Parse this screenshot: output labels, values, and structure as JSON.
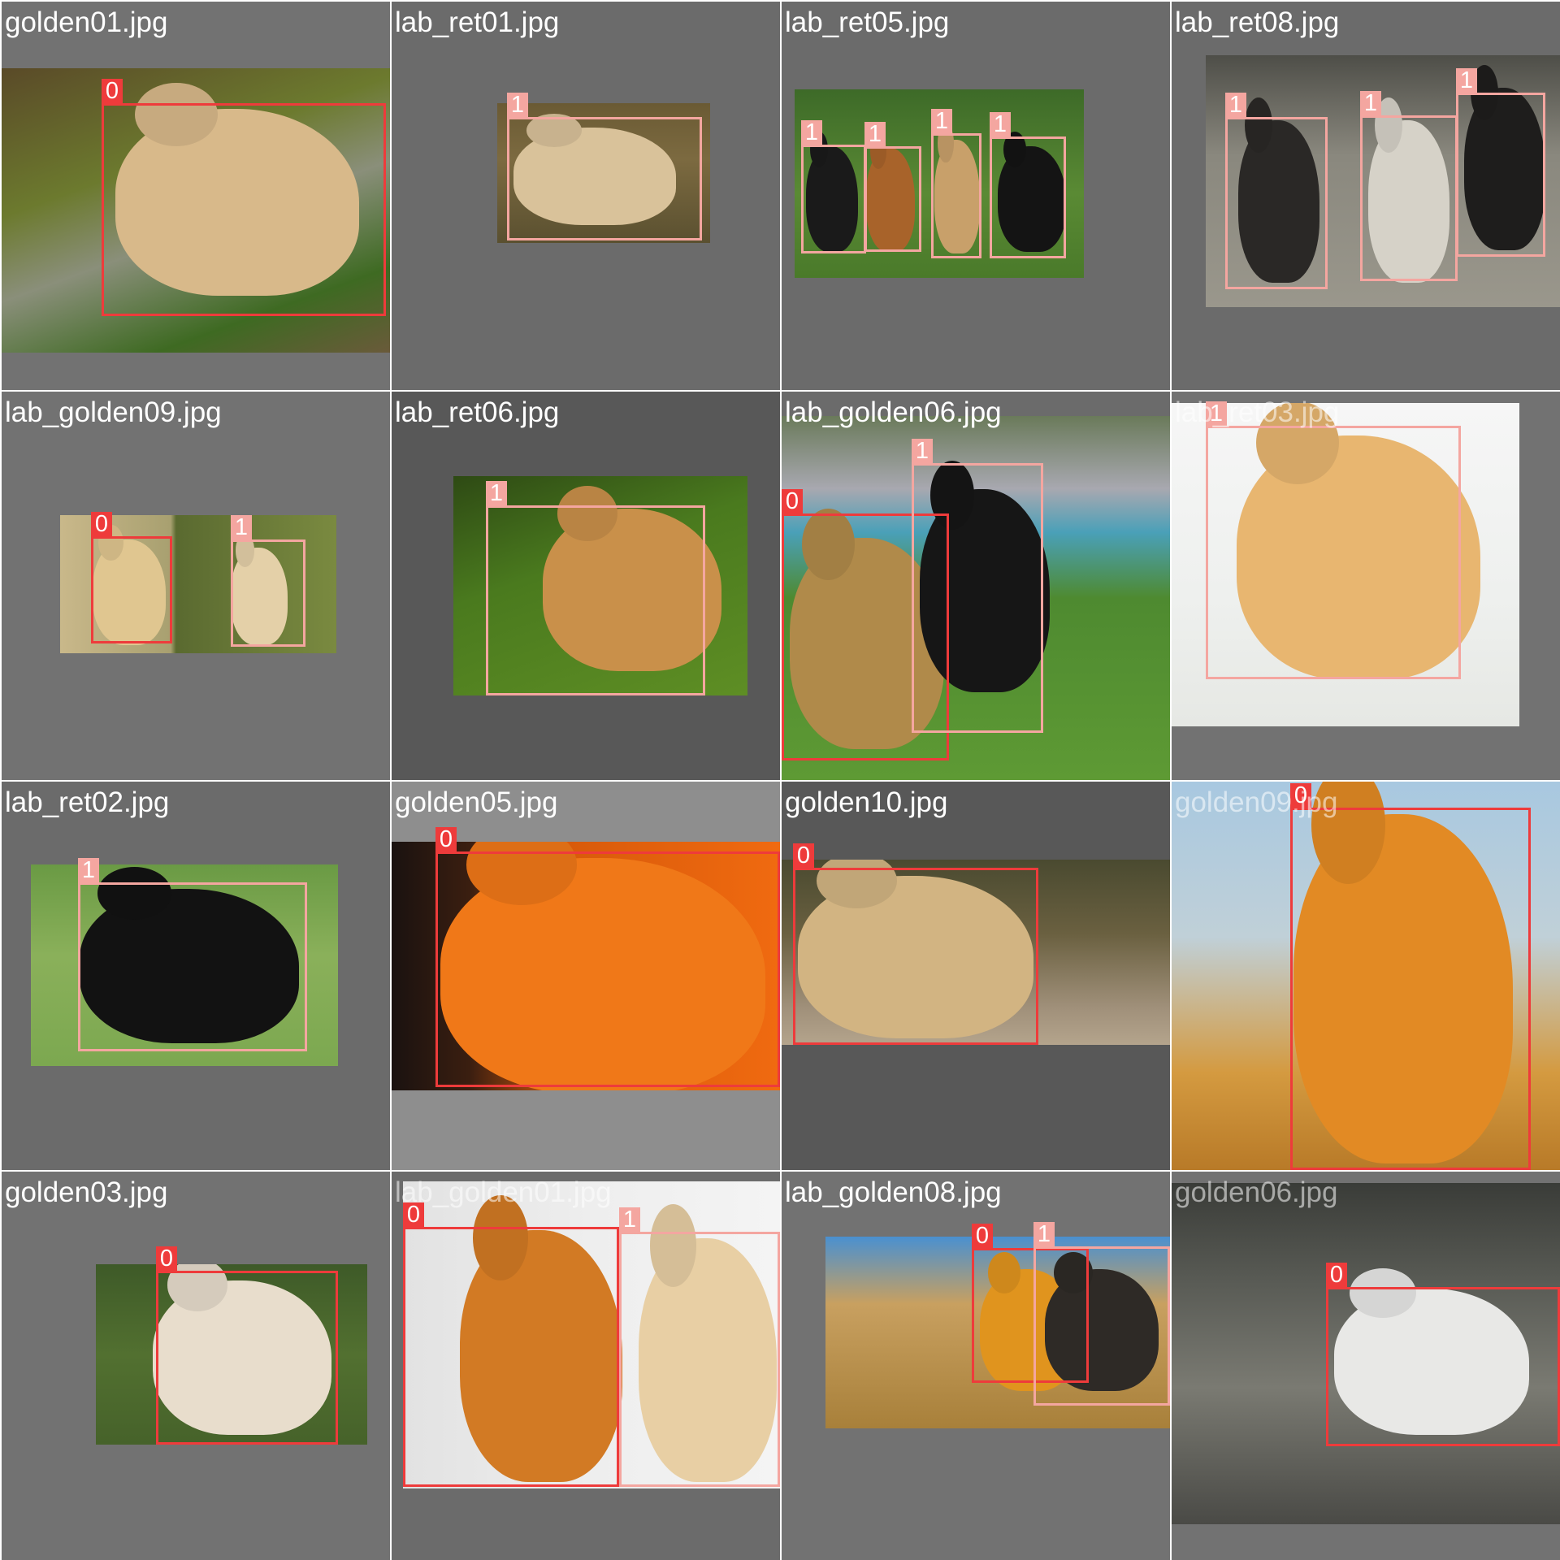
{
  "mosaic": {
    "class_colors": {
      "0": "#ee3b3b",
      "1": "#f4a6a0"
    },
    "tiles": [
      {
        "filename": "golden01.jpg",
        "detections": [
          "0"
        ]
      },
      {
        "filename": "lab_ret01.jpg",
        "detections": [
          "1"
        ]
      },
      {
        "filename": "lab_ret05.jpg",
        "detections": [
          "1",
          "1",
          "1",
          "1"
        ]
      },
      {
        "filename": "lab_ret08.jpg",
        "detections": [
          "1",
          "1",
          "1"
        ]
      },
      {
        "filename": "lab_golden09.jpg",
        "detections": [
          "0",
          "1"
        ]
      },
      {
        "filename": "lab_ret06.jpg",
        "detections": [
          "1"
        ]
      },
      {
        "filename": "lab_golden06.jpg",
        "detections": [
          "0",
          "1"
        ]
      },
      {
        "filename": "lab_ret03.jpg",
        "detections": [
          "1"
        ]
      },
      {
        "filename": "lab_ret02.jpg",
        "detections": [
          "1"
        ]
      },
      {
        "filename": "golden05.jpg",
        "detections": [
          "0"
        ]
      },
      {
        "filename": "golden10.jpg",
        "detections": [
          "0"
        ]
      },
      {
        "filename": "golden09.jpg",
        "detections": [
          "0"
        ]
      },
      {
        "filename": "golden03.jpg",
        "detections": [
          "0"
        ]
      },
      {
        "filename": "lab_golden01.jpg",
        "detections": [
          "0",
          "1"
        ]
      },
      {
        "filename": "lab_golden08.jpg",
        "detections": [
          "0",
          "1"
        ]
      },
      {
        "filename": "golden06.jpg",
        "detections": [
          "0"
        ]
      }
    ]
  }
}
